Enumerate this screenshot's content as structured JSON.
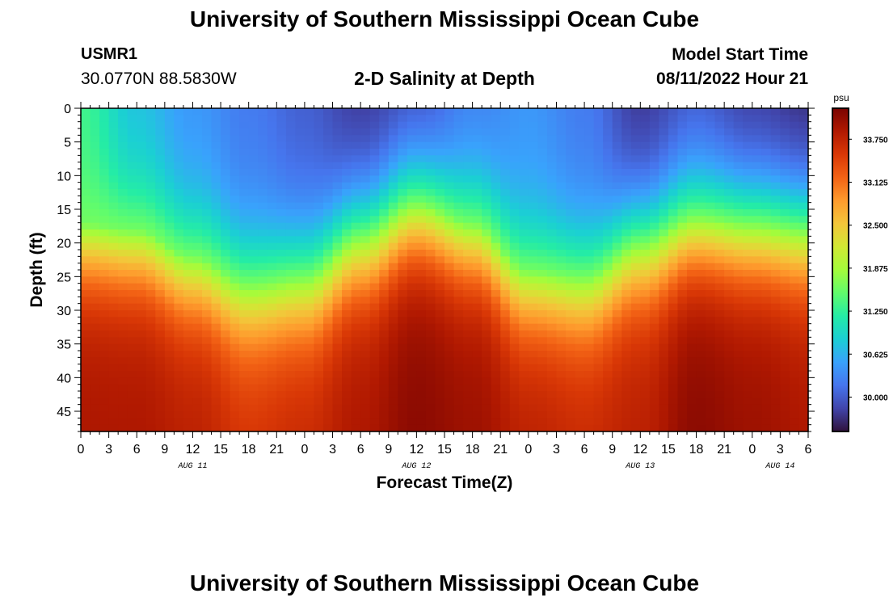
{
  "header": {
    "title": "University of Southern Mississippi Ocean Cube",
    "station": "USMR1",
    "coords": "30.0770N  88.5830W",
    "subtitle": "2-D Salinity at Depth",
    "model_start_label": "Model Start Time",
    "model_start_value": "08/11/2022 Hour 21"
  },
  "footer": {
    "title": "University of Southern Mississippi Ocean Cube"
  },
  "chart_data": {
    "type": "heatmap",
    "title": "2-D Salinity at Depth",
    "xlabel": "Forecast Time(Z)",
    "ylabel": "Depth (ft)",
    "x_tick_labels": [
      "0",
      "3",
      "6",
      "9",
      "12",
      "15",
      "18",
      "21",
      "0",
      "3",
      "6",
      "9",
      "12",
      "15",
      "18",
      "21",
      "0",
      "3",
      "6",
      "9",
      "12",
      "15",
      "18",
      "21",
      "0",
      "3",
      "6"
    ],
    "x_range_hours": [
      0,
      78
    ],
    "date_labels": [
      {
        "label": "AUG 11",
        "hour": 12
      },
      {
        "label": "AUG 12",
        "hour": 36
      },
      {
        "label": "AUG 13",
        "hour": 60
      },
      {
        "label": "AUG 14",
        "hour": 75
      }
    ],
    "y_ticks": [
      0,
      5,
      10,
      15,
      20,
      25,
      30,
      35,
      40,
      45
    ],
    "y_range": [
      0,
      48
    ],
    "colorbar": {
      "unit": "psu",
      "range": [
        29.5,
        34.2
      ],
      "tick_labels": [
        "33.750",
        "33.125",
        "32.500",
        "31.875",
        "31.250",
        "30.625",
        "30.000"
      ],
      "tick_values": [
        33.75,
        33.125,
        32.5,
        31.875,
        31.25,
        30.625,
        30.0
      ],
      "colors": [
        "#30123b",
        "#4145ab",
        "#4675ed",
        "#39a2fc",
        "#1bcfd4",
        "#24eca6",
        "#61fc6c",
        "#a4fc3b",
        "#d1e834",
        "#f3c63a",
        "#fe9b2d",
        "#f36315",
        "#d93806",
        "#b11901",
        "#7a0402"
      ]
    },
    "gradient_profile": {
      "surface_salinity_range": [
        29.6,
        31.4
      ],
      "bottom_salinity_range": [
        33.6,
        34.1
      ],
      "columns": [
        {
          "hour": 0,
          "surface": 31.3,
          "halocline_depth": 17,
          "bottom": 33.9
        },
        {
          "hour": 6,
          "surface": 30.7,
          "halocline_depth": 18,
          "bottom": 33.9
        },
        {
          "hour": 12,
          "surface": 30.4,
          "halocline_depth": 22,
          "bottom": 33.8
        },
        {
          "hour": 18,
          "surface": 30.2,
          "halocline_depth": 26,
          "bottom": 33.6
        },
        {
          "hour": 24,
          "surface": 30.0,
          "halocline_depth": 25,
          "bottom": 33.7
        },
        {
          "hour": 30,
          "surface": 29.7,
          "halocline_depth": 19,
          "bottom": 33.9
        },
        {
          "hour": 36,
          "surface": 29.8,
          "halocline_depth": 14,
          "bottom": 34.1
        },
        {
          "hour": 42,
          "surface": 30.2,
          "halocline_depth": 17,
          "bottom": 34.0
        },
        {
          "hour": 48,
          "surface": 30.4,
          "halocline_depth": 24,
          "bottom": 33.8
        },
        {
          "hour": 54,
          "surface": 30.2,
          "halocline_depth": 25,
          "bottom": 33.7
        },
        {
          "hour": 60,
          "surface": 29.7,
          "halocline_depth": 20,
          "bottom": 33.8
        },
        {
          "hour": 66,
          "surface": 29.9,
          "halocline_depth": 16,
          "bottom": 34.1
        },
        {
          "hour": 72,
          "surface": 29.7,
          "halocline_depth": 17,
          "bottom": 34.0
        },
        {
          "hour": 78,
          "surface": 29.6,
          "halocline_depth": 18,
          "bottom": 33.9
        }
      ]
    }
  }
}
